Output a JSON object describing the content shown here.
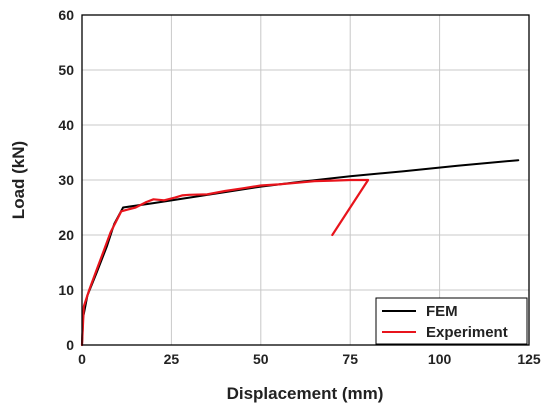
{
  "chart_data": {
    "type": "line",
    "title": "",
    "xlabel": "Displacement (mm)",
    "ylabel": "Load (kN)",
    "xlim": [
      0,
      125
    ],
    "ylim": [
      0,
      60
    ],
    "x_ticks": [
      "0",
      "25",
      "50",
      "75",
      "100",
      "125"
    ],
    "y_ticks": [
      "0",
      "10",
      "20",
      "30",
      "40",
      "50",
      "60"
    ],
    "grid": true,
    "legend_position": "bottom-right",
    "series": [
      {
        "name": "FEM",
        "color": "#000000",
        "points": [
          [
            0,
            0
          ],
          [
            0.3,
            5
          ],
          [
            1.5,
            9
          ],
          [
            4,
            13
          ],
          [
            7,
            18
          ],
          [
            9,
            22
          ],
          [
            11.5,
            25
          ],
          [
            20,
            25.8
          ],
          [
            30,
            26.8
          ],
          [
            40,
            27.8
          ],
          [
            50,
            28.8
          ],
          [
            60,
            29.6
          ],
          [
            75,
            30.7
          ],
          [
            90,
            31.6
          ],
          [
            105,
            32.6
          ],
          [
            122,
            33.6
          ]
        ]
      },
      {
        "name": "Experiment",
        "color": "#e8141c",
        "points": [
          [
            0,
            0
          ],
          [
            0.5,
            7
          ],
          [
            2,
            10
          ],
          [
            4,
            13.5
          ],
          [
            6,
            17
          ],
          [
            8,
            20.5
          ],
          [
            11,
            24.3
          ],
          [
            15,
            25
          ],
          [
            18,
            26
          ],
          [
            20,
            26.5
          ],
          [
            23,
            26.3
          ],
          [
            26,
            26.8
          ],
          [
            28,
            27.2
          ],
          [
            30,
            27.3
          ],
          [
            35,
            27.4
          ],
          [
            40,
            28
          ],
          [
            45,
            28.5
          ],
          [
            50,
            29
          ],
          [
            55,
            29.2
          ],
          [
            60,
            29.5
          ],
          [
            65,
            29.8
          ],
          [
            70,
            29.9
          ],
          [
            75,
            30
          ],
          [
            80,
            30
          ],
          [
            70,
            20
          ]
        ]
      }
    ]
  }
}
